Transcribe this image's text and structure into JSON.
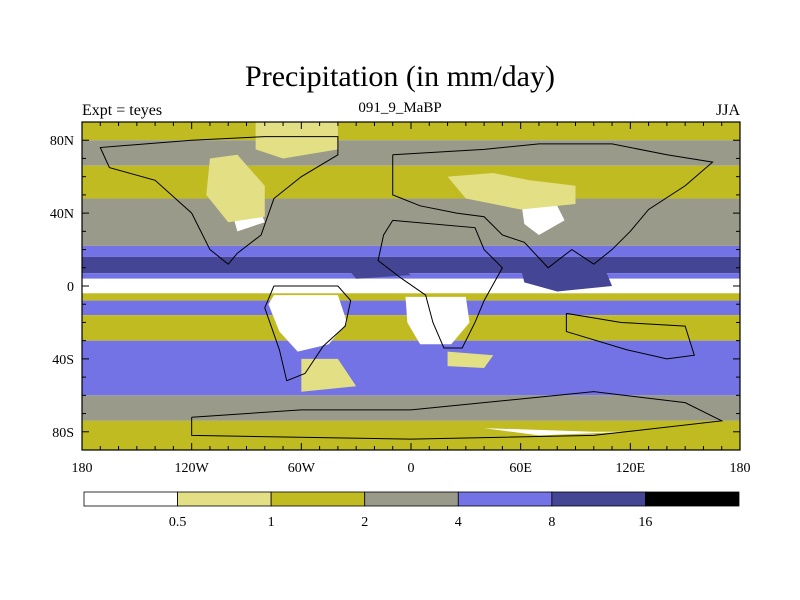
{
  "title": "Precipitation (in mm/day)",
  "subtitle_left": "Expt = teyes",
  "subtitle_center": "091_9_MaBP",
  "subtitle_right": "JJA",
  "lat_ticks": [
    {
      "lat": 80,
      "label": "80N"
    },
    {
      "lat": 40,
      "label": "40N"
    },
    {
      "lat": 0,
      "label": "0"
    },
    {
      "lat": -40,
      "label": "40S"
    },
    {
      "lat": -80,
      "label": "80S"
    }
  ],
  "lon_ticks": [
    {
      "lon": -180,
      "label": "180"
    },
    {
      "lon": -120,
      "label": "120W"
    },
    {
      "lon": -60,
      "label": "60W"
    },
    {
      "lon": 0,
      "label": "0"
    },
    {
      "lon": 60,
      "label": "60E"
    },
    {
      "lon": 120,
      "label": "120E"
    },
    {
      "lon": 180,
      "label": "180"
    }
  ],
  "colorbar": {
    "levels": [
      "0.5",
      "1",
      "2",
      "4",
      "8",
      "16"
    ],
    "colors": [
      "#ffffff",
      "#e3df85",
      "#c1bb22",
      "#9a9a8a",
      "#7373e6",
      "#454595",
      "#000000"
    ]
  },
  "bands": [
    {
      "lat_n": 90,
      "lat_s": 80,
      "level": 2
    },
    {
      "lat_n": 80,
      "lat_s": 66,
      "level": 3
    },
    {
      "lat_n": 66,
      "lat_s": 48,
      "level": 2
    },
    {
      "lat_n": 48,
      "lat_s": 22,
      "level": 3
    },
    {
      "lat_n": 22,
      "lat_s": 16,
      "level": 4
    },
    {
      "lat_n": 16,
      "lat_s": 7,
      "level": 5
    },
    {
      "lat_n": 7,
      "lat_s": 4,
      "level": 4
    },
    {
      "lat_n": 4,
      "lat_s": -4,
      "level": 0
    },
    {
      "lat_n": -4,
      "lat_s": -8,
      "level": 2
    },
    {
      "lat_n": -8,
      "lat_s": -16,
      "level": 4
    },
    {
      "lat_n": -16,
      "lat_s": -30,
      "level": 2
    },
    {
      "lat_n": -30,
      "lat_s": -60,
      "level": 4
    },
    {
      "lat_n": -60,
      "lat_s": -74,
      "level": 3
    },
    {
      "lat_n": -74,
      "lat_s": -90,
      "level": 2
    }
  ],
  "patches": [
    {
      "level": 0,
      "points": [
        [
          -75,
          -5
        ],
        [
          -40,
          -5
        ],
        [
          -35,
          -20
        ],
        [
          -45,
          -32
        ],
        [
          -62,
          -36
        ],
        [
          -72,
          -25
        ],
        [
          -78,
          -10
        ]
      ]
    },
    {
      "level": 0,
      "points": [
        [
          -3,
          -6
        ],
        [
          30,
          -6
        ],
        [
          32,
          -20
        ],
        [
          22,
          -32
        ],
        [
          5,
          -32
        ],
        [
          -2,
          -20
        ]
      ]
    },
    {
      "level": 0,
      "points": [
        [
          60,
          48
        ],
        [
          78,
          48
        ],
        [
          84,
          36
        ],
        [
          70,
          28
        ],
        [
          62,
          34
        ]
      ]
    },
    {
      "level": 0,
      "points": [
        [
          -100,
          48
        ],
        [
          -85,
          48
        ],
        [
          -80,
          35
        ],
        0,
        [
          -95,
          30
        ]
      ]
    },
    {
      "level": 1,
      "points": [
        [
          -110,
          70
        ],
        [
          -95,
          72
        ],
        [
          -80,
          55
        ],
        [
          -80,
          38
        ],
        [
          -100,
          35
        ],
        [
          -112,
          50
        ]
      ]
    },
    {
      "level": 1,
      "points": [
        [
          -85,
          90
        ],
        [
          -40,
          90
        ],
        [
          -40,
          75
        ],
        [
          -70,
          70
        ],
        [
          -85,
          75
        ]
      ]
    },
    {
      "level": 1,
      "points": [
        [
          20,
          60
        ],
        [
          45,
          62
        ],
        [
          65,
          58
        ],
        [
          90,
          55
        ],
        [
          90,
          45
        ],
        [
          60,
          42
        ],
        [
          30,
          48
        ]
      ]
    },
    {
      "level": 5,
      "points": [
        [
          60,
          10
        ],
        [
          105,
          12
        ],
        [
          110,
          0
        ],
        [
          80,
          -3
        ],
        [
          62,
          2
        ]
      ]
    },
    {
      "level": 5,
      "points": [
        [
          -35,
          10
        ],
        [
          -10,
          14
        ],
        [
          0,
          6
        ],
        [
          -30,
          4
        ]
      ]
    },
    {
      "level": 1,
      "points": [
        [
          -60,
          -40
        ],
        [
          -40,
          -40
        ],
        [
          -30,
          -55
        ],
        [
          -60,
          -58
        ]
      ]
    },
    {
      "level": 1,
      "points": [
        [
          20,
          -36
        ],
        [
          45,
          -38
        ],
        [
          40,
          -45
        ],
        [
          20,
          -44
        ]
      ]
    },
    {
      "level": 0,
      "points": [
        [
          40,
          -78
        ],
        [
          100,
          -80
        ],
        [
          120,
          -80
        ],
        [
          70,
          -82
        ]
      ]
    }
  ],
  "coastlines": [
    [
      [
        -80,
        82
      ],
      [
        -40,
        82
      ],
      [
        -40,
        72
      ],
      [
        -60,
        60
      ],
      [
        -75,
        48
      ],
      [
        -82,
        28
      ],
      [
        -95,
        18
      ],
      [
        -100,
        12
      ],
      [
        -110,
        20
      ],
      [
        -120,
        40
      ],
      [
        -140,
        58
      ],
      [
        -165,
        65
      ],
      [
        -170,
        76
      ],
      [
        -120,
        80
      ],
      [
        -80,
        82
      ]
    ],
    [
      [
        -75,
        0
      ],
      [
        -40,
        0
      ],
      [
        -33,
        -8
      ],
      [
        -36,
        -22
      ],
      [
        -48,
        -33
      ],
      [
        -58,
        -48
      ],
      [
        -68,
        -52
      ],
      [
        -72,
        -35
      ],
      [
        -80,
        -12
      ],
      [
        -75,
        0
      ]
    ],
    [
      [
        -10,
        36
      ],
      [
        35,
        32
      ],
      [
        40,
        20
      ],
      [
        50,
        10
      ],
      [
        40,
        -8
      ],
      [
        35,
        -20
      ],
      [
        28,
        -34
      ],
      [
        18,
        -34
      ],
      [
        12,
        -20
      ],
      [
        8,
        -5
      ],
      [
        -5,
        4
      ],
      [
        -18,
        14
      ],
      [
        -15,
        28
      ],
      [
        -10,
        36
      ]
    ],
    [
      [
        -10,
        72
      ],
      [
        40,
        75
      ],
      [
        70,
        78
      ],
      [
        110,
        78
      ],
      [
        140,
        72
      ],
      [
        165,
        68
      ],
      [
        150,
        55
      ],
      [
        130,
        42
      ],
      [
        120,
        30
      ],
      [
        110,
        20
      ],
      [
        100,
        12
      ],
      [
        88,
        20
      ],
      [
        75,
        10
      ],
      [
        62,
        24
      ],
      [
        50,
        28
      ],
      [
        40,
        38
      ],
      [
        25,
        40
      ],
      [
        5,
        44
      ],
      [
        -10,
        50
      ],
      [
        -10,
        72
      ]
    ],
    [
      [
        85,
        -15
      ],
      [
        115,
        -20
      ],
      [
        150,
        -22
      ],
      [
        155,
        -38
      ],
      [
        140,
        -40
      ],
      [
        118,
        -35
      ],
      [
        85,
        -25
      ],
      [
        85,
        -15
      ]
    ],
    [
      [
        -120,
        -72
      ],
      [
        -60,
        -68
      ],
      [
        0,
        -68
      ],
      [
        60,
        -62
      ],
      [
        100,
        -58
      ],
      [
        150,
        -64
      ],
      [
        170,
        -74
      ],
      [
        100,
        -82
      ],
      [
        0,
        -84
      ],
      [
        -120,
        -82
      ],
      [
        -120,
        -72
      ]
    ]
  ]
}
